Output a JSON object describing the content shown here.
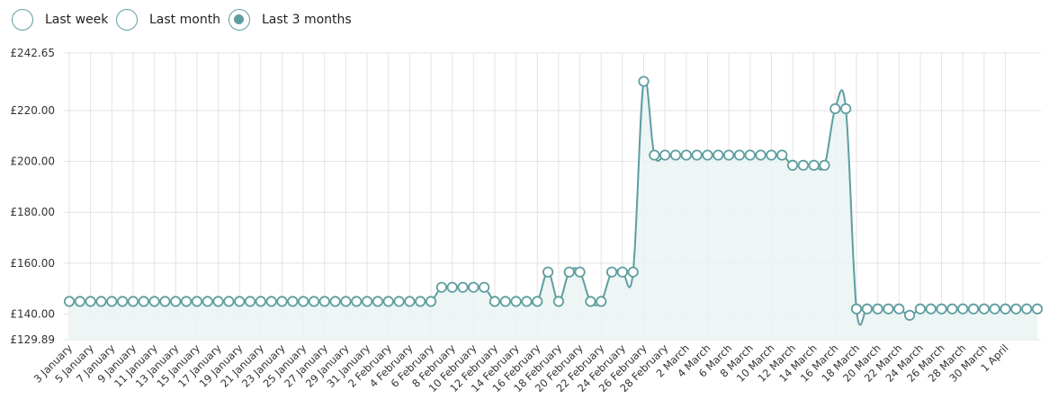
{
  "range_selector": {
    "options": [
      {
        "label": "Last week",
        "checked": false
      },
      {
        "label": "Last month",
        "checked": false
      },
      {
        "label": "Last 3 months",
        "checked": true
      }
    ]
  },
  "colors": {
    "accent": "#5f9ea0",
    "fill": "#eaf3f3",
    "grid": "#e3e3e3"
  },
  "chart_data": {
    "type": "area",
    "title": "",
    "xlabel": "",
    "ylabel": "",
    "currency": "£",
    "ylim": [
      129.89,
      242.65
    ],
    "ytick_labels": [
      "£242.65",
      "£220.00",
      "£200.00",
      "£180.00",
      "£160.00",
      "£140.00",
      "£129.89"
    ],
    "ytick_values": [
      242.65,
      220,
      200,
      180,
      160,
      140,
      129.89
    ],
    "x_tick_labels": [
      "3 January",
      "5 January",
      "7 January",
      "9 January",
      "11 January",
      "13 January",
      "15 January",
      "17 January",
      "19 January",
      "21 January",
      "23 January",
      "25 January",
      "27 January",
      "29 January",
      "31 January",
      "2 February",
      "4 February",
      "6 February",
      "8 February",
      "10 February",
      "12 February",
      "14 February",
      "16 February",
      "18 February",
      "20 February",
      "22 February",
      "24 February",
      "26 February",
      "28 February",
      "2 March",
      "4 March",
      "6 March",
      "8 March",
      "10 March",
      "12 March",
      "14 March",
      "16 March",
      "18 March",
      "20 March",
      "22 March",
      "24 March",
      "26 March",
      "28 March",
      "30 March",
      "1 April"
    ],
    "x_start": "3 January",
    "grid": true,
    "legend": "none",
    "values": [
      144.95,
      144.95,
      144.95,
      144.95,
      144.95,
      144.95,
      144.95,
      144.95,
      144.95,
      144.95,
      144.95,
      144.95,
      144.95,
      144.95,
      144.95,
      144.95,
      144.95,
      144.95,
      144.95,
      144.95,
      144.95,
      144.95,
      144.95,
      144.95,
      144.95,
      144.95,
      144.95,
      144.95,
      144.95,
      144.95,
      144.95,
      144.95,
      144.95,
      144.95,
      144.95,
      150.5,
      150.5,
      150.5,
      150.5,
      150.5,
      144.95,
      144.95,
      144.95,
      144.95,
      144.95,
      156.5,
      144.95,
      156.5,
      156.5,
      144.95,
      144.95,
      156.5,
      156.5,
      156.5,
      231.5,
      202.5,
      202.5,
      202.5,
      202.5,
      202.5,
      202.5,
      202.5,
      202.5,
      202.5,
      202.5,
      202.5,
      202.5,
      202.5,
      198.5,
      198.5,
      198.5,
      198.5,
      220.75,
      220.75,
      142,
      142,
      142,
      142,
      142,
      139.5,
      142,
      142,
      142,
      142,
      142,
      142,
      142,
      142,
      142,
      142,
      142,
      142
    ]
  }
}
